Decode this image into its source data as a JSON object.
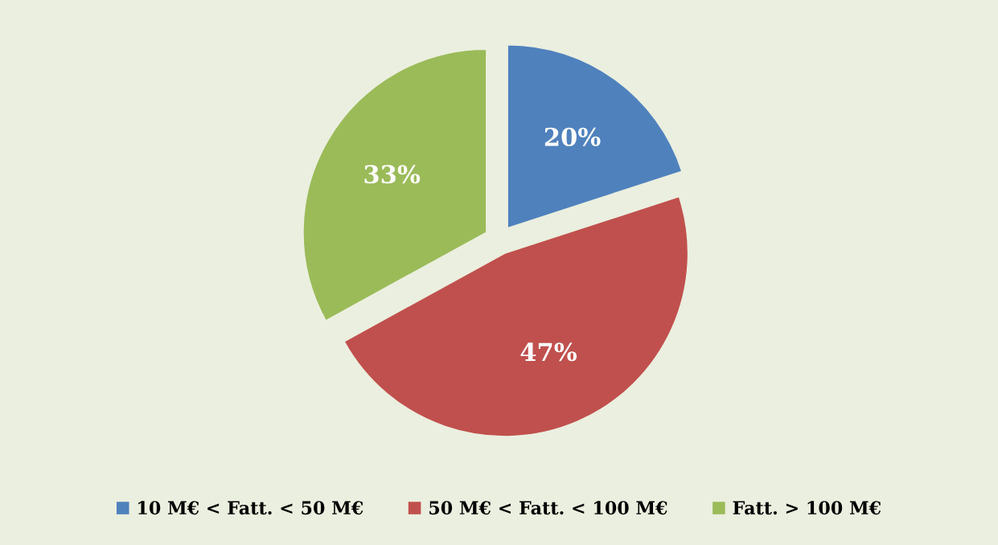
{
  "chart_data": {
    "type": "pie",
    "categories": [
      "10 M€ < Fatt. < 50 M€",
      "50 M€ < Fatt. < 100 M€",
      "Fatt. > 100 M€"
    ],
    "values": [
      20,
      47,
      33
    ],
    "colors": [
      "#4f81bd",
      "#c0504d",
      "#9bbb59"
    ],
    "value_labels": [
      "20%",
      "47%",
      "33%"
    ],
    "legend": "bottom"
  }
}
